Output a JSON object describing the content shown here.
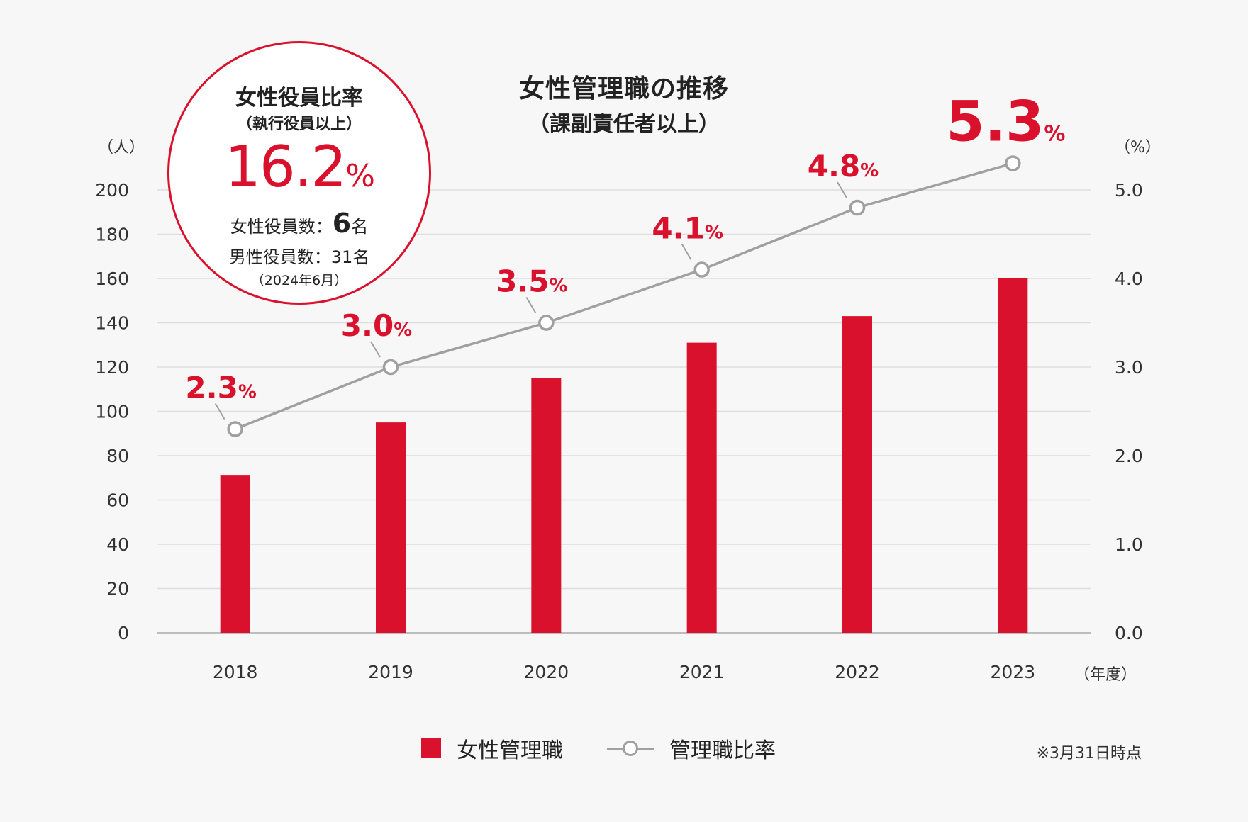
{
  "chart_data": {
    "type": "bar",
    "title": "女性管理職の推移",
    "subtitle": "（課副責任者以上）",
    "categories": [
      "2018",
      "2019",
      "2020",
      "2021",
      "2022",
      "2023"
    ],
    "series": [
      {
        "name": "女性管理職",
        "type": "bar",
        "axis": "left",
        "values": [
          71,
          95,
          115,
          131,
          143,
          160
        ]
      },
      {
        "name": "管理職比率",
        "type": "line",
        "axis": "right",
        "values": [
          2.3,
          3.0,
          3.5,
          4.1,
          4.8,
          5.3
        ]
      }
    ],
    "line_labels": [
      "2.3",
      "3.0",
      "3.5",
      "4.1",
      "4.8",
      "5.3"
    ],
    "percent_sign": "%",
    "y_left": {
      "unit": "（人）",
      "lim": [
        0,
        200
      ],
      "ticks": [
        "0",
        "20",
        "40",
        "60",
        "80",
        "100",
        "120",
        "140",
        "160",
        "180",
        "200"
      ]
    },
    "y_right": {
      "unit": "（%）",
      "lim": [
        0,
        5.0
      ],
      "ticks": [
        "0.0",
        "1.0",
        "2.0",
        "3.0",
        "4.0",
        "5.0"
      ]
    },
    "x_unit": "（年度）",
    "grid": true,
    "legend_position": "bottom-center",
    "colors": {
      "bar": "#d9112c",
      "line": "#a0a0a0",
      "label": "#d9112c"
    }
  },
  "callout": {
    "title": "女性役員比率",
    "subtitle": "（執行役員以上）",
    "value": "16.2",
    "percent": "%",
    "female_label": "女性役員数：",
    "female_count": "6",
    "female_suffix": "名",
    "male_line": "男性役員数：31名",
    "date": "（2024年6月）"
  },
  "legend": {
    "bar_label": "女性管理職",
    "line_label": "管理職比率"
  },
  "note": "※3月31日時点"
}
